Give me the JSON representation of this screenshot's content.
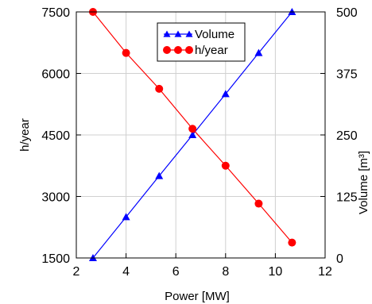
{
  "chart_data": {
    "type": "line",
    "x": [
      2.67,
      4.0,
      5.33,
      6.67,
      8.0,
      9.33,
      10.67
    ],
    "series": [
      {
        "name": "Volume",
        "axis": "right",
        "color": "#0000ff",
        "marker": "triangle",
        "values": [
          0,
          83.3,
          166.7,
          250,
          333.3,
          416.7,
          500
        ]
      },
      {
        "name": "h/year",
        "axis": "left",
        "color": "#ff0000",
        "marker": "circle",
        "values": [
          7500,
          6500,
          5625,
          4650,
          3750,
          2825,
          1875
        ]
      }
    ],
    "xlabel": "Power [MW]",
    "ylabel": "h/year",
    "y2label": "Volume [m³]",
    "xlim": [
      2,
      12
    ],
    "ylim": [
      1500,
      7500
    ],
    "y2lim": [
      0,
      500
    ],
    "xticks": [
      "2",
      "4",
      "6",
      "8",
      "10",
      "12"
    ],
    "yticks": [
      "1500",
      "3000",
      "4500",
      "6000",
      "7500"
    ],
    "y2ticks": [
      "0",
      "125",
      "250",
      "375",
      "500"
    ],
    "grid": true,
    "legend_position": "top-center"
  }
}
